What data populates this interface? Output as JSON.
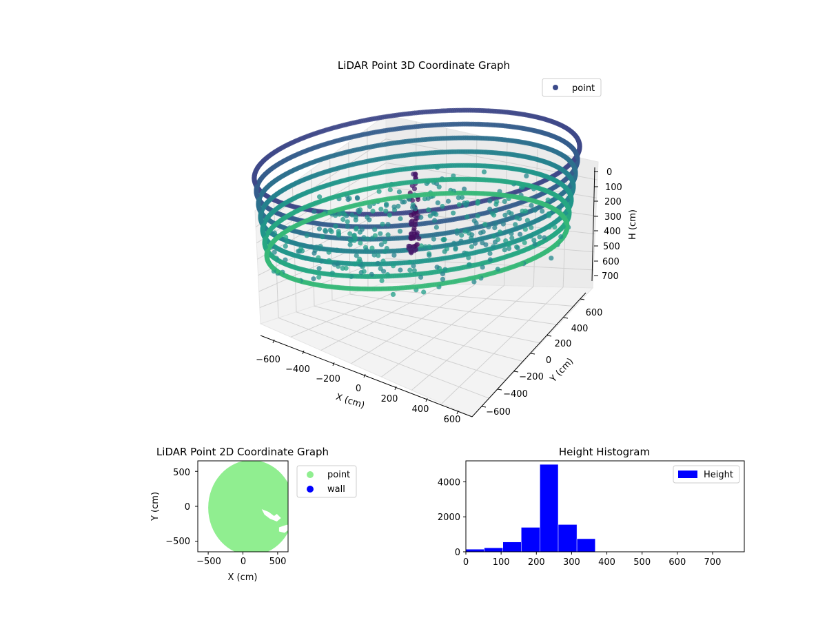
{
  "chart_data": [
    {
      "type": "scatter3d",
      "title": "LiDAR Point 3D Coordinate Graph",
      "xlabel": "X (cm)",
      "ylabel": "Y (cm)",
      "zlabel": "H (cm)",
      "xlim": [
        -650,
        650
      ],
      "ylim": [
        -650,
        650
      ],
      "zlim": [
        780,
        0
      ],
      "x_ticks": [
        "−600",
        "−400",
        "−200",
        "0",
        "200",
        "400",
        "600"
      ],
      "y_ticks": [
        "−600",
        "−400",
        "−200",
        "0",
        "200",
        "400",
        "600"
      ],
      "z_ticks": [
        "0",
        "100",
        "200",
        "300",
        "400",
        "500",
        "600",
        "700"
      ],
      "legend": [
        {
          "name": "point",
          "color": "#3b4a8a"
        }
      ],
      "legend_position": "upper right",
      "colormap": "viridis",
      "grid": true,
      "shape": "ring wall of points, radius ~650 cm, height ~100–600 cm, with a vertical cluster near x≈100 cm"
    },
    {
      "type": "scatter",
      "title": "LiDAR Point 2D Coordinate Graph",
      "xlabel": "X (cm)",
      "ylabel": "Y (cm)",
      "xlim": [
        -650,
        650
      ],
      "ylim": [
        -650,
        650
      ],
      "x_ticks": [
        "−500",
        "0",
        "500"
      ],
      "y_ticks": [
        "500",
        "0",
        "−500"
      ],
      "legend": [
        {
          "name": "point",
          "color": "#90ee90"
        },
        {
          "name": "wall",
          "color": "#0000ff"
        }
      ],
      "legend_position": "outside right"
    },
    {
      "type": "bar",
      "title": "Height Histogram",
      "xlim": [
        0,
        790
      ],
      "ylim": [
        0,
        5200
      ],
      "x_ticks": [
        "0",
        "100",
        "200",
        "300",
        "400",
        "500",
        "600",
        "700"
      ],
      "y_ticks": [
        "0",
        "2000",
        "4000"
      ],
      "bin_edges": [
        0,
        52,
        105,
        157,
        210,
        262,
        315,
        367,
        420,
        472,
        525,
        577,
        630,
        682,
        735,
        787
      ],
      "counts": [
        150,
        230,
        560,
        1400,
        5000,
        1560,
        750,
        20,
        10,
        5,
        5,
        5,
        0,
        0,
        0
      ],
      "series": [
        {
          "name": "Height",
          "color": "#0000ff"
        }
      ],
      "legend_position": "upper right"
    }
  ]
}
